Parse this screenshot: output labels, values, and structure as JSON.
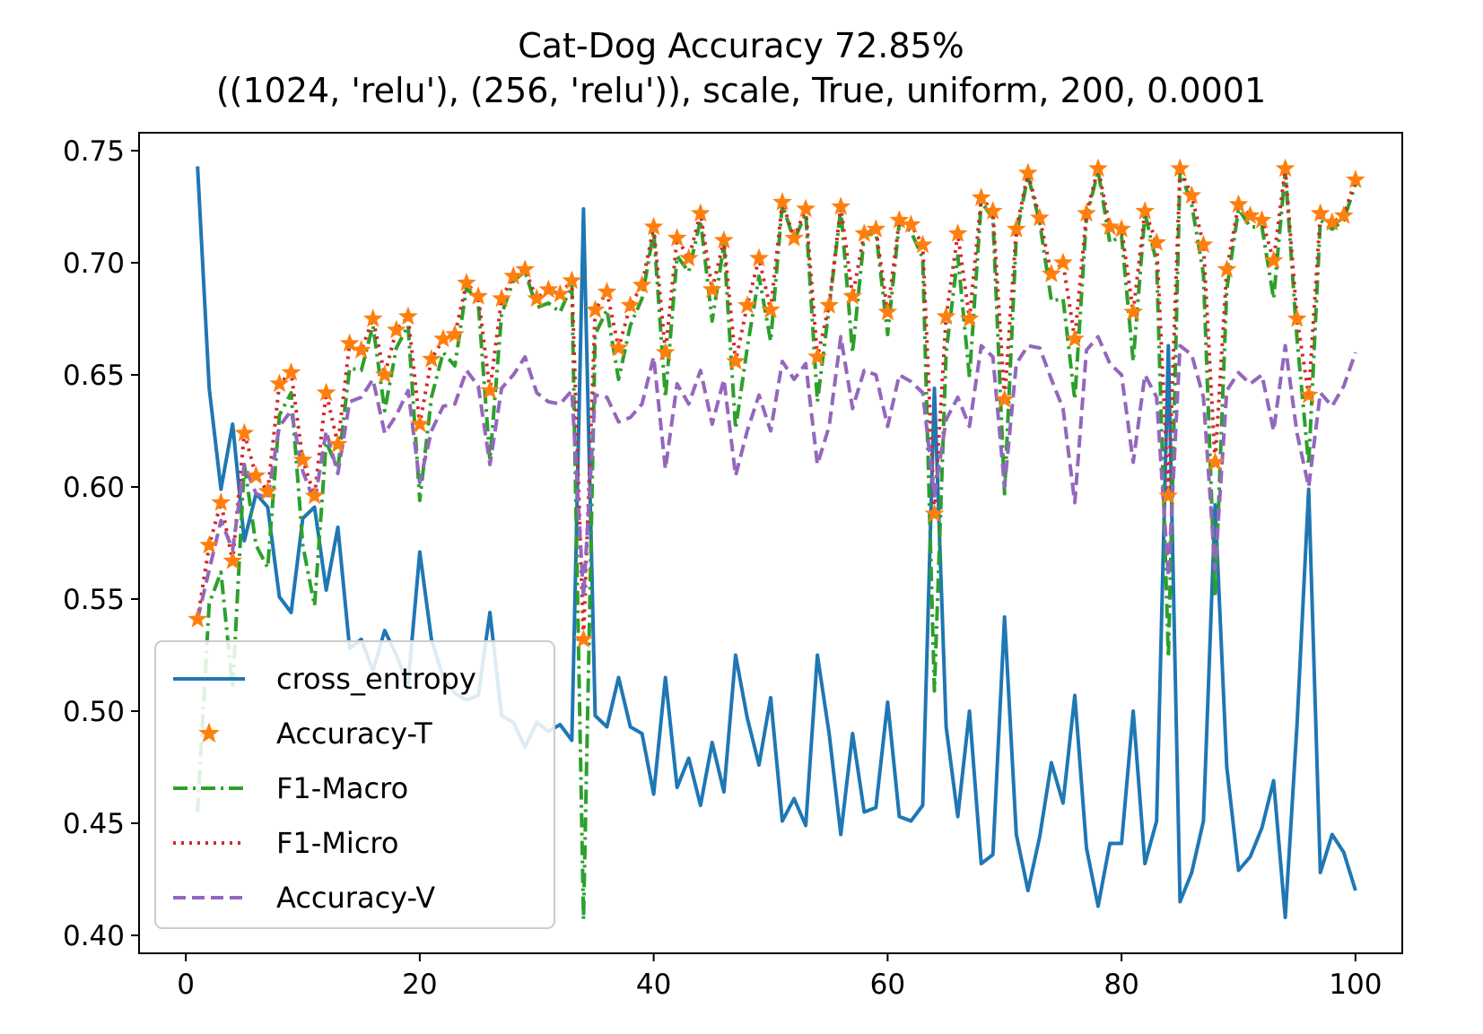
{
  "chart_data": {
    "type": "line",
    "title": "Cat-Dog Accuracy 72.85%",
    "subtitle": "((1024, 'relu'), (256, 'relu')), scale, True, uniform, 200, 0.0001",
    "xlabel": "",
    "ylabel": "",
    "xlim": [
      -4,
      104
    ],
    "ylim": [
      0.392,
      0.758
    ],
    "xticks": [
      0,
      20,
      40,
      60,
      80,
      100
    ],
    "xtick_labels": [
      "0",
      "20",
      "40",
      "60",
      "80",
      "100"
    ],
    "yticks": [
      0.4,
      0.45,
      0.5,
      0.55,
      0.6,
      0.65,
      0.7,
      0.75
    ],
    "ytick_labels": [
      "0.40",
      "0.45",
      "0.50",
      "0.55",
      "0.60",
      "0.65",
      "0.70",
      "0.75"
    ],
    "grid": false,
    "legend_position": "lower-left",
    "x": [
      1,
      2,
      3,
      4,
      5,
      6,
      7,
      8,
      9,
      10,
      11,
      12,
      13,
      14,
      15,
      16,
      17,
      18,
      19,
      20,
      21,
      22,
      23,
      24,
      25,
      26,
      27,
      28,
      29,
      30,
      31,
      32,
      33,
      34,
      35,
      36,
      37,
      38,
      39,
      40,
      41,
      42,
      43,
      44,
      45,
      46,
      47,
      48,
      49,
      50,
      51,
      52,
      53,
      54,
      55,
      56,
      57,
      58,
      59,
      60,
      61,
      62,
      63,
      64,
      65,
      66,
      67,
      68,
      69,
      70,
      71,
      72,
      73,
      74,
      75,
      76,
      77,
      78,
      79,
      80,
      81,
      82,
      83,
      84,
      85,
      86,
      87,
      88,
      89,
      90,
      91,
      92,
      93,
      94,
      95,
      96,
      97,
      98,
      99,
      100
    ],
    "series": [
      {
        "name": "cross_entropy",
        "color": "#1f77b4",
        "style": "solid",
        "values": [
          0.743,
          0.644,
          0.599,
          0.628,
          0.576,
          0.597,
          0.591,
          0.551,
          0.544,
          0.586,
          0.591,
          0.554,
          0.582,
          0.528,
          0.532,
          0.518,
          0.536,
          0.525,
          0.512,
          0.571,
          0.532,
          0.515,
          0.508,
          0.505,
          0.507,
          0.544,
          0.498,
          0.495,
          0.484,
          0.495,
          0.491,
          0.494,
          0.487,
          0.724,
          0.498,
          0.493,
          0.515,
          0.493,
          0.49,
          0.463,
          0.515,
          0.466,
          0.479,
          0.458,
          0.486,
          0.464,
          0.525,
          0.497,
          0.476,
          0.506,
          0.451,
          0.461,
          0.449,
          0.525,
          0.49,
          0.445,
          0.49,
          0.455,
          0.457,
          0.504,
          0.453,
          0.451,
          0.458,
          0.644,
          0.493,
          0.453,
          0.5,
          0.432,
          0.436,
          0.542,
          0.445,
          0.42,
          0.444,
          0.477,
          0.459,
          0.507,
          0.439,
          0.413,
          0.441,
          0.441,
          0.5,
          0.432,
          0.451,
          0.663,
          0.415,
          0.428,
          0.451,
          0.592,
          0.475,
          0.429,
          0.435,
          0.448,
          0.469,
          0.408,
          0.494,
          0.599,
          0.428,
          0.445,
          0.437,
          0.42
        ]
      },
      {
        "name": "Accuracy-T",
        "color": "#ff7f0e",
        "style": "star",
        "values": [
          0.541,
          0.574,
          0.593,
          0.567,
          0.624,
          0.605,
          0.598,
          0.646,
          0.651,
          0.612,
          0.596,
          0.642,
          0.619,
          0.664,
          0.661,
          0.675,
          0.65,
          0.67,
          0.676,
          0.628,
          0.657,
          0.666,
          0.668,
          0.691,
          0.685,
          0.643,
          0.684,
          0.694,
          0.697,
          0.684,
          0.688,
          0.686,
          0.692,
          0.532,
          0.679,
          0.687,
          0.662,
          0.681,
          0.69,
          0.716,
          0.66,
          0.711,
          0.702,
          0.722,
          0.688,
          0.71,
          0.656,
          0.681,
          0.702,
          0.679,
          0.727,
          0.711,
          0.724,
          0.658,
          0.681,
          0.725,
          0.685,
          0.713,
          0.715,
          0.678,
          0.719,
          0.717,
          0.708,
          0.588,
          0.676,
          0.713,
          0.675,
          0.729,
          0.723,
          0.639,
          0.715,
          0.74,
          0.72,
          0.695,
          0.7,
          0.666,
          0.722,
          0.742,
          0.716,
          0.715,
          0.678,
          0.723,
          0.709,
          0.596,
          0.742,
          0.73,
          0.708,
          0.611,
          0.697,
          0.726,
          0.721,
          0.719,
          0.701,
          0.742,
          0.675,
          0.641,
          0.722,
          0.718,
          0.721,
          0.737
        ]
      },
      {
        "name": "F1-Macro",
        "color": "#2ca02c",
        "style": "dashdot",
        "values": [
          0.455,
          0.548,
          0.562,
          0.51,
          0.61,
          0.574,
          0.564,
          0.632,
          0.642,
          0.574,
          0.547,
          0.62,
          0.608,
          0.653,
          0.652,
          0.672,
          0.634,
          0.662,
          0.672,
          0.594,
          0.64,
          0.66,
          0.654,
          0.689,
          0.682,
          0.612,
          0.677,
          0.692,
          0.696,
          0.68,
          0.682,
          0.678,
          0.69,
          0.407,
          0.668,
          0.679,
          0.648,
          0.672,
          0.684,
          0.714,
          0.64,
          0.703,
          0.696,
          0.719,
          0.674,
          0.708,
          0.626,
          0.662,
          0.694,
          0.665,
          0.726,
          0.71,
          0.722,
          0.638,
          0.68,
          0.724,
          0.66,
          0.712,
          0.714,
          0.668,
          0.718,
          0.714,
          0.702,
          0.509,
          0.66,
          0.703,
          0.649,
          0.727,
          0.72,
          0.597,
          0.712,
          0.739,
          0.718,
          0.683,
          0.684,
          0.639,
          0.72,
          0.741,
          0.709,
          0.712,
          0.656,
          0.722,
          0.7,
          0.524,
          0.741,
          0.726,
          0.695,
          0.551,
          0.688,
          0.724,
          0.716,
          0.716,
          0.684,
          0.741,
          0.666,
          0.61,
          0.719,
          0.715,
          0.719,
          0.735
        ]
      },
      {
        "name": "F1-Micro",
        "color": "#d62728",
        "style": "dotted",
        "values": [
          0.541,
          0.574,
          0.593,
          0.567,
          0.624,
          0.605,
          0.598,
          0.646,
          0.651,
          0.612,
          0.596,
          0.642,
          0.619,
          0.664,
          0.661,
          0.675,
          0.65,
          0.67,
          0.676,
          0.628,
          0.657,
          0.666,
          0.668,
          0.691,
          0.685,
          0.643,
          0.684,
          0.694,
          0.697,
          0.684,
          0.688,
          0.686,
          0.692,
          0.532,
          0.679,
          0.687,
          0.662,
          0.681,
          0.69,
          0.716,
          0.66,
          0.711,
          0.702,
          0.722,
          0.688,
          0.71,
          0.656,
          0.681,
          0.702,
          0.679,
          0.727,
          0.711,
          0.724,
          0.658,
          0.681,
          0.725,
          0.685,
          0.713,
          0.715,
          0.678,
          0.719,
          0.717,
          0.708,
          0.588,
          0.676,
          0.713,
          0.675,
          0.729,
          0.723,
          0.639,
          0.715,
          0.74,
          0.72,
          0.695,
          0.7,
          0.666,
          0.722,
          0.742,
          0.716,
          0.715,
          0.678,
          0.723,
          0.709,
          0.596,
          0.742,
          0.73,
          0.708,
          0.611,
          0.697,
          0.726,
          0.721,
          0.719,
          0.701,
          0.742,
          0.675,
          0.641,
          0.722,
          0.718,
          0.721,
          0.737
        ]
      },
      {
        "name": "Accuracy-V",
        "color": "#9467bd",
        "style": "dashed",
        "values": [
          0.541,
          0.563,
          0.585,
          0.572,
          0.61,
          0.597,
          0.595,
          0.627,
          0.634,
          0.607,
          0.593,
          0.625,
          0.606,
          0.638,
          0.64,
          0.648,
          0.624,
          0.632,
          0.643,
          0.602,
          0.625,
          0.636,
          0.637,
          0.652,
          0.645,
          0.61,
          0.644,
          0.65,
          0.658,
          0.642,
          0.638,
          0.637,
          0.643,
          0.551,
          0.641,
          0.64,
          0.629,
          0.631,
          0.637,
          0.658,
          0.608,
          0.646,
          0.637,
          0.652,
          0.628,
          0.648,
          0.605,
          0.625,
          0.641,
          0.625,
          0.656,
          0.648,
          0.655,
          0.61,
          0.627,
          0.667,
          0.635,
          0.652,
          0.65,
          0.627,
          0.65,
          0.647,
          0.642,
          0.596,
          0.63,
          0.64,
          0.627,
          0.663,
          0.658,
          0.6,
          0.655,
          0.663,
          0.662,
          0.648,
          0.635,
          0.593,
          0.661,
          0.667,
          0.655,
          0.65,
          0.611,
          0.65,
          0.64,
          0.56,
          0.663,
          0.659,
          0.64,
          0.563,
          0.643,
          0.651,
          0.646,
          0.65,
          0.625,
          0.663,
          0.624,
          0.6,
          0.642,
          0.636,
          0.645,
          0.66
        ]
      }
    ]
  }
}
